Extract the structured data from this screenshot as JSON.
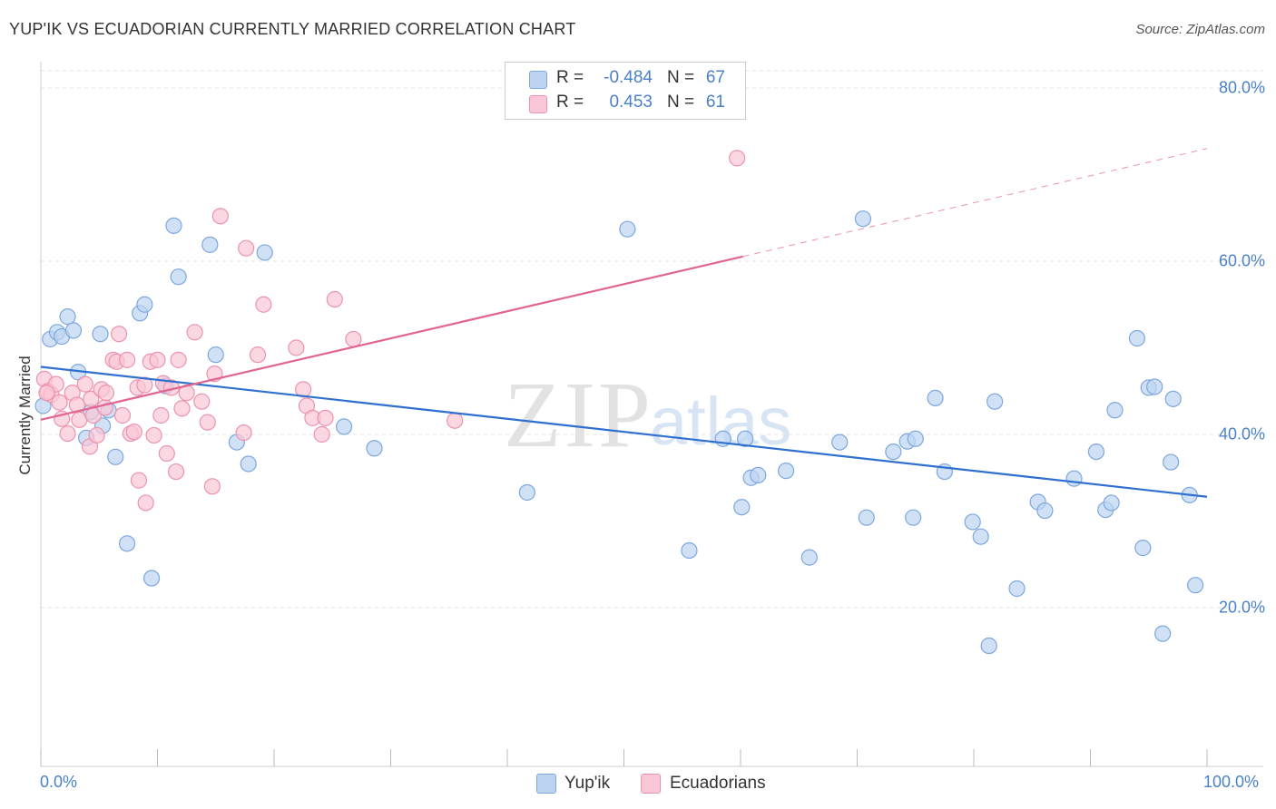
{
  "header": {
    "title": "YUP'IK VS ECUADORIAN CURRENTLY MARRIED CORRELATION CHART",
    "source": "Source: ZipAtlas.com"
  },
  "watermark": {
    "zip": "ZIP",
    "atlas": "atlas"
  },
  "legend_top": {
    "rows": [
      {
        "r_label": "R =",
        "r_value": "-0.484",
        "n_label": "N =",
        "n_value": "67",
        "color": "#bcd4f2",
        "border": "#7da7dd"
      },
      {
        "r_label": "R =",
        "r_value": "0.453",
        "n_label": "N =",
        "n_value": "61",
        "color": "#f9c6d6",
        "border": "#eb93ae"
      }
    ]
  },
  "legend_bottom": {
    "items": [
      {
        "label": "Yup'ik",
        "color": "#bcd4f2",
        "border": "#7da7dd"
      },
      {
        "label": "Ecuadorians",
        "color": "#f9c6d6",
        "border": "#eb93ae"
      }
    ]
  },
  "chart_data": {
    "type": "scatter",
    "title": "YUP'IK VS ECUADORIAN CURRENTLY MARRIED CORRELATION CHART",
    "xlabel": "",
    "ylabel": "Currently Married",
    "xlim": [
      0,
      100
    ],
    "ylim": [
      0,
      84
    ],
    "x_tick_labels": [
      "0.0%",
      "100.0%"
    ],
    "y_ticks": [
      20,
      40,
      60,
      80
    ],
    "y_tick_labels": [
      "20.0%",
      "40.0%",
      "60.0%",
      "80.0%"
    ],
    "grid": true,
    "legend_position": "top-center",
    "series": [
      {
        "name": "Yup'ik",
        "color": "#7da7dd",
        "fill": "#bcd4f2",
        "line_color": "#2e6fd0",
        "trend": {
          "x": [
            0,
            100
          ],
          "y": [
            47.8,
            32.8
          ]
        },
        "points": [
          [
            0.2,
            43.3
          ],
          [
            0.8,
            51.0
          ],
          [
            1.4,
            51.8
          ],
          [
            1.8,
            51.3
          ],
          [
            2.3,
            53.6
          ],
          [
            2.8,
            52.0
          ],
          [
            3.2,
            47.2
          ],
          [
            3.9,
            39.6
          ],
          [
            4.3,
            42.6
          ],
          [
            5.1,
            51.6
          ],
          [
            5.3,
            41.0
          ],
          [
            5.8,
            42.8
          ],
          [
            6.4,
            37.4
          ],
          [
            7.4,
            27.4
          ],
          [
            8.5,
            54.0
          ],
          [
            8.9,
            55.0
          ],
          [
            9.5,
            23.4
          ],
          [
            10.7,
            45.6
          ],
          [
            11.4,
            64.1
          ],
          [
            11.8,
            58.2
          ],
          [
            14.5,
            61.9
          ],
          [
            15.0,
            49.2
          ],
          [
            16.8,
            39.1
          ],
          [
            17.8,
            36.6
          ],
          [
            19.2,
            61.0
          ],
          [
            26.0,
            40.9
          ],
          [
            28.6,
            38.4
          ],
          [
            41.7,
            33.3
          ],
          [
            50.3,
            63.7
          ],
          [
            55.6,
            26.6
          ],
          [
            58.5,
            39.5
          ],
          [
            60.1,
            31.6
          ],
          [
            60.4,
            39.5
          ],
          [
            60.9,
            35.0
          ],
          [
            61.5,
            35.3
          ],
          [
            63.9,
            35.8
          ],
          [
            65.9,
            25.8
          ],
          [
            68.5,
            39.1
          ],
          [
            70.5,
            64.9
          ],
          [
            70.8,
            30.4
          ],
          [
            73.1,
            38.0
          ],
          [
            74.3,
            39.2
          ],
          [
            74.8,
            30.4
          ],
          [
            75.0,
            39.5
          ],
          [
            76.7,
            44.2
          ],
          [
            77.5,
            35.7
          ],
          [
            79.9,
            29.9
          ],
          [
            80.6,
            28.2
          ],
          [
            81.3,
            15.6
          ],
          [
            81.8,
            43.8
          ],
          [
            83.7,
            22.2
          ],
          [
            85.5,
            32.2
          ],
          [
            86.1,
            31.2
          ],
          [
            88.6,
            34.9
          ],
          [
            90.5,
            38.0
          ],
          [
            91.3,
            31.3
          ],
          [
            91.8,
            32.1
          ],
          [
            92.1,
            42.8
          ],
          [
            94.0,
            51.1
          ],
          [
            94.5,
            26.9
          ],
          [
            95.0,
            45.4
          ],
          [
            95.5,
            45.5
          ],
          [
            96.2,
            17.0
          ],
          [
            96.9,
            36.8
          ],
          [
            97.1,
            44.1
          ],
          [
            98.5,
            33.0
          ],
          [
            99.0,
            22.6
          ]
        ]
      },
      {
        "name": "Ecuadorians",
        "color": "#eb93ae",
        "fill": "#f9c6d6",
        "line_color": "#e06591",
        "trend": {
          "x": [
            0,
            100
          ],
          "y": [
            41.7,
            73.0
          ]
        },
        "trend_solid_to_x": 60.2,
        "points": [
          [
            0.3,
            46.4
          ],
          [
            0.6,
            45.0
          ],
          [
            0.9,
            44.6
          ],
          [
            1.3,
            45.8
          ],
          [
            1.6,
            43.7
          ],
          [
            1.8,
            41.8
          ],
          [
            2.3,
            40.1
          ],
          [
            2.7,
            44.8
          ],
          [
            3.1,
            43.4
          ],
          [
            3.3,
            41.7
          ],
          [
            3.8,
            45.8
          ],
          [
            4.2,
            38.6
          ],
          [
            4.3,
            44.1
          ],
          [
            4.5,
            42.2
          ],
          [
            4.8,
            39.9
          ],
          [
            5.2,
            45.2
          ],
          [
            5.5,
            43.1
          ],
          [
            5.6,
            44.8
          ],
          [
            6.2,
            48.6
          ],
          [
            6.5,
            48.4
          ],
          [
            6.7,
            51.6
          ],
          [
            7.0,
            42.2
          ],
          [
            7.4,
            48.6
          ],
          [
            7.7,
            40.1
          ],
          [
            8.0,
            40.3
          ],
          [
            8.3,
            45.4
          ],
          [
            8.4,
            34.7
          ],
          [
            8.9,
            45.7
          ],
          [
            9.0,
            32.1
          ],
          [
            9.4,
            48.4
          ],
          [
            9.7,
            39.9
          ],
          [
            10.0,
            48.6
          ],
          [
            10.3,
            42.2
          ],
          [
            10.5,
            45.9
          ],
          [
            10.8,
            37.8
          ],
          [
            11.2,
            45.4
          ],
          [
            11.6,
            35.7
          ],
          [
            11.8,
            48.6
          ],
          [
            12.1,
            43.0
          ],
          [
            12.5,
            44.8
          ],
          [
            13.2,
            51.8
          ],
          [
            13.8,
            43.8
          ],
          [
            14.3,
            41.4
          ],
          [
            14.7,
            34.0
          ],
          [
            14.9,
            47.0
          ],
          [
            15.4,
            65.2
          ],
          [
            17.4,
            40.2
          ],
          [
            17.6,
            61.5
          ],
          [
            18.6,
            49.2
          ],
          [
            19.1,
            55.0
          ],
          [
            21.9,
            50.0
          ],
          [
            22.5,
            45.2
          ],
          [
            22.8,
            43.3
          ],
          [
            23.3,
            41.9
          ],
          [
            24.1,
            40.0
          ],
          [
            24.4,
            41.9
          ],
          [
            25.2,
            55.6
          ],
          [
            26.8,
            51.0
          ],
          [
            35.5,
            41.6
          ],
          [
            59.7,
            71.9
          ],
          [
            0.5,
            44.8
          ]
        ]
      }
    ]
  }
}
